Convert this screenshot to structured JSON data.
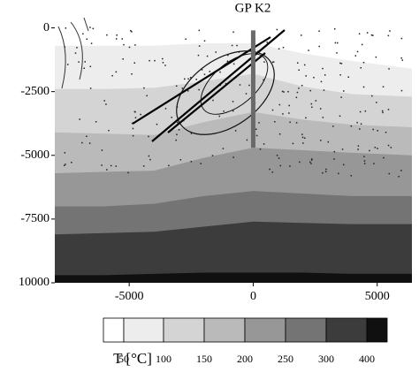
{
  "chart_data": {
    "type": "contour",
    "annotation": "GP K2",
    "x": [
      -8000,
      -6000,
      -4000,
      -2000,
      0,
      2000,
      4000,
      6400
    ],
    "series": [
      {
        "name": "50",
        "color": "#ededed",
        "values": [
          -700,
          -700,
          -700,
          -600,
          -600,
          -1000,
          -1300,
          -1600
        ]
      },
      {
        "name": "100",
        "color": "#d4d4d4",
        "values": [
          -2400,
          -2400,
          -2350,
          -2100,
          -1800,
          -2300,
          -2600,
          -2700
        ]
      },
      {
        "name": "150",
        "color": "#bababa",
        "values": [
          -4100,
          -4150,
          -4200,
          -3700,
          -3300,
          -3600,
          -3800,
          -3900
        ]
      },
      {
        "name": "200",
        "color": "#979797",
        "values": [
          -5700,
          -5650,
          -5600,
          -5100,
          -4700,
          -4800,
          -4900,
          -5000
        ]
      },
      {
        "name": "250",
        "color": "#747474",
        "values": [
          -7000,
          -7000,
          -6900,
          -6600,
          -6400,
          -6500,
          -6600,
          -6600
        ]
      },
      {
        "name": "300",
        "color": "#3c3c3c",
        "values": [
          -8100,
          -8050,
          -8000,
          -7800,
          -7600,
          -7650,
          -7700,
          -7700
        ]
      },
      {
        "name": "400",
        "color": "#101010",
        "values": [
          -9700,
          -9700,
          -9650,
          -9600,
          -9600,
          -9600,
          -9650,
          -9650
        ]
      }
    ],
    "background": "#ffffff",
    "xlim": [
      -8000,
      6400
    ],
    "ylim": [
      -10000,
      400
    ],
    "xticks": [
      -5000,
      0,
      5000
    ],
    "yticks": [
      0,
      -2500,
      -5000,
      -7500,
      {
        "value": -10000,
        "label": "10000"
      }
    ],
    "colorbar_label": "T [°C]",
    "well": {
      "x": 0,
      "top": -100,
      "bottom": -4700
    }
  }
}
